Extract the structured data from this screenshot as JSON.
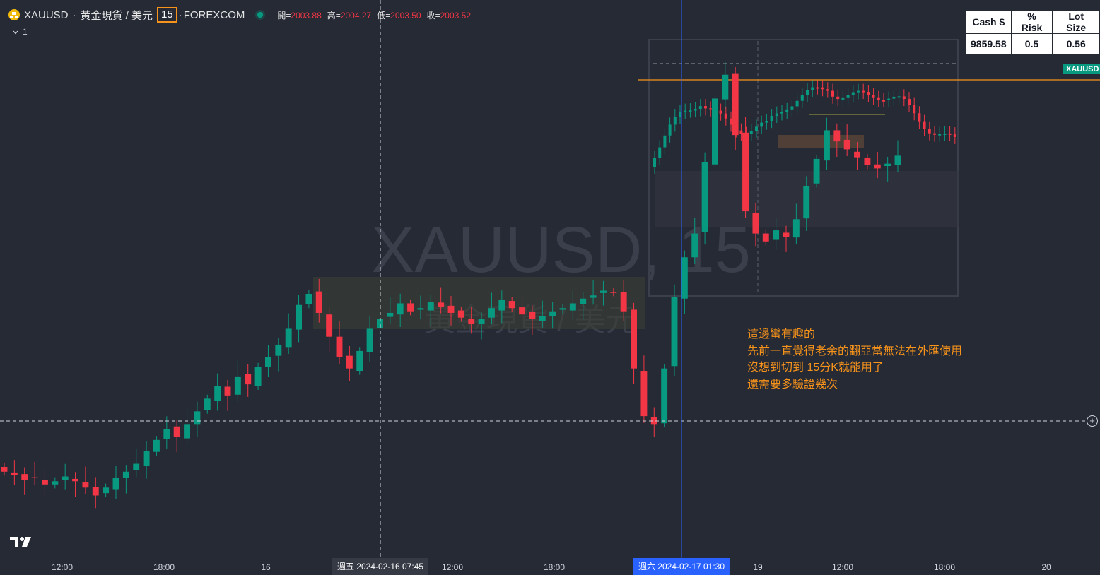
{
  "header": {
    "symbol": "XAUUSD",
    "separator": "·",
    "name": "黃金現貨 / 美元",
    "interval": "15",
    "exchange": "FOREXCOM",
    "ohlc": {
      "open_label": "開=",
      "open": "2003.88",
      "high_label": "高=",
      "high": "2004.27",
      "low_label": "低=",
      "low": "2003.50",
      "close_label": "收=",
      "close": "2003.52"
    },
    "collapse_count": "1"
  },
  "watermark": {
    "line1": "XAUUSD, 15",
    "line2": "黃金現貨 / 美元"
  },
  "risk_table": {
    "headers": [
      "Cash $",
      "% Risk",
      "Lot Size"
    ],
    "values": [
      "9859.58",
      "0.5",
      "0.56"
    ]
  },
  "price_tag": {
    "label": "XAUUSD",
    "color": "#089981"
  },
  "note": {
    "lines": [
      "這邊蠻有趣的",
      "先前一直覺得老余的翻亞當無法在外匯使用",
      "沒想到切到 15分K就能用了",
      "還需要多驗證幾次"
    ],
    "color": "#f7931a"
  },
  "time_axis": {
    "ticks": [
      "12:00",
      "18:00",
      "16",
      "12:00",
      "18:00",
      "19",
      "12:00",
      "18:00",
      "20"
    ],
    "cursor_label": "週五 2024-02-16   07:45",
    "selected_label": "週六 2024-02-17   01:30"
  },
  "colors": {
    "background": "#262a35",
    "up": "#089981",
    "down": "#f23645",
    "level_line": "#f7931a",
    "selected_time": "#2962ff"
  },
  "chart_data": {
    "type": "candlestick",
    "symbol": "XAUUSD",
    "interval": "15",
    "series": [
      {
        "name": "XAUUSD",
        "close": [
          1993.0,
          1992.8,
          1992.5,
          1992.6,
          1992.2,
          1992.4,
          1992.7,
          1992.4,
          1992.0,
          1991.5,
          1992.0,
          1992.6,
          1993.0,
          1993.5,
          1994.3,
          1995.0,
          1995.7,
          1995.2,
          1996.0,
          1996.8,
          1997.6,
          1998.4,
          1997.8,
          1999.0,
          1998.5,
          1999.6,
          2000.2,
          2001.0,
          2002.0,
          2003.5,
          2004.2,
          2003.0,
          2001.5,
          2000.2,
          1999.5,
          2000.6,
          2002.0,
          2002.6,
          2003.0,
          2003.6,
          2003.1,
          2003.3,
          2003.7,
          2003.4,
          2003.0,
          2002.7,
          2002.3,
          2002.6,
          2003.3,
          2003.8,
          2003.3,
          2002.9,
          2002.6,
          2002.8,
          2003.1,
          2003.3,
          2003.6,
          2003.9,
          2004.1,
          2004.4,
          2004.3,
          2003.1,
          1999.5,
          1996.5,
          1996.0,
          1999.5,
          2004.0,
          2006.5,
          2008.0,
          2012.5,
          2016.5,
          2018.0,
          2014.2,
          2009.4,
          2008.0,
          2007.5,
          2008.2,
          2007.8,
          2008.9,
          2011.0,
          2012.7,
          2014.5,
          2013.8,
          2013.3,
          2012.8,
          2012.3,
          2012.1,
          2012.4,
          2012.9
        ]
      }
    ]
  }
}
